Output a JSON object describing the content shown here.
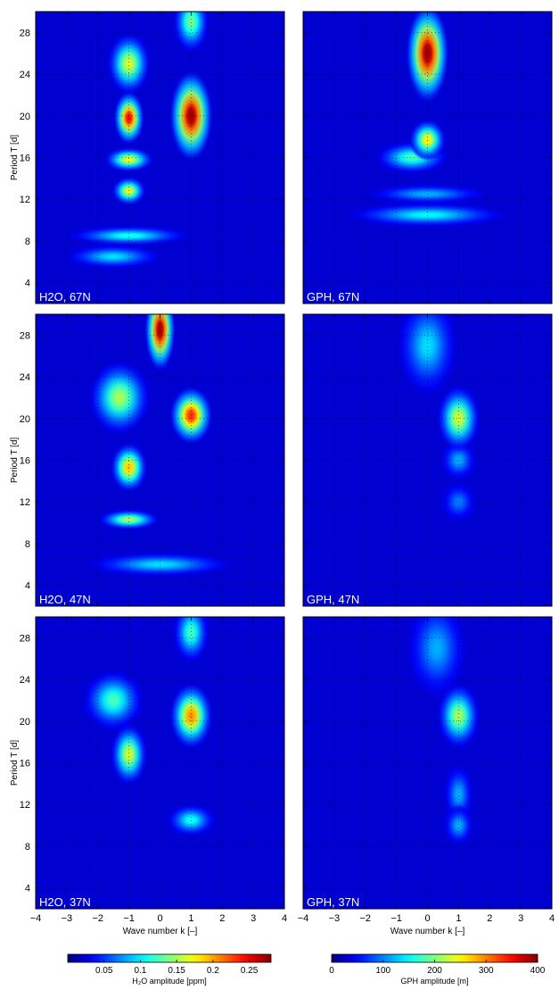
{
  "chart_data": {
    "type": "heatmap",
    "x_label": "Wave number k [–]",
    "y_label": "Period T [d]",
    "xlim": [
      -4,
      4
    ],
    "ylim": [
      2,
      30
    ],
    "x_ticks": [
      -4,
      -3,
      -2,
      -1,
      0,
      1,
      2,
      3,
      4
    ],
    "y_ticks": [
      4,
      8,
      12,
      16,
      20,
      24,
      28
    ],
    "grid": true,
    "colormap": "jet",
    "background_value_fraction": 0.08,
    "panels": [
      {
        "label": "H2O, 67N",
        "quantity": "H2O",
        "peaks": [
          {
            "k": 1,
            "T": 20,
            "value_fraction": 1.0,
            "sk": 0.35,
            "sT": 2.2
          },
          {
            "k": -1,
            "T": 19.8,
            "value_fraction": 0.9,
            "sk": 0.25,
            "sT": 1.3
          },
          {
            "k": -1,
            "T": 25,
            "value_fraction": 0.6,
            "sk": 0.35,
            "sT": 1.5
          },
          {
            "k": -1,
            "T": 15.8,
            "value_fraction": 0.62,
            "sk": 0.4,
            "sT": 0.6
          },
          {
            "k": -1,
            "T": 12.8,
            "value_fraction": 0.62,
            "sk": 0.28,
            "sT": 0.7
          },
          {
            "k": 1,
            "T": 29,
            "value_fraction": 0.5,
            "sk": 0.3,
            "sT": 1.5
          },
          {
            "k": -1,
            "T": 8.5,
            "value_fraction": 0.4,
            "sk": 1.0,
            "sT": 0.5
          },
          {
            "k": -1.5,
            "T": 6.5,
            "value_fraction": 0.35,
            "sk": 0.8,
            "sT": 0.6
          }
        ]
      },
      {
        "label": "GPH, 67N",
        "quantity": "GPH",
        "peaks": [
          {
            "k": 0,
            "T": 26,
            "value_fraction": 1.0,
            "sk": 0.35,
            "sT": 2.4
          },
          {
            "k": 0,
            "T": 17.7,
            "value_fraction": 0.65,
            "sk": 0.3,
            "sT": 1.0
          },
          {
            "k": -0.5,
            "T": 16,
            "value_fraction": 0.45,
            "sk": 0.6,
            "sT": 0.8
          },
          {
            "k": 0,
            "T": 10.5,
            "value_fraction": 0.38,
            "sk": 1.3,
            "sT": 0.6
          },
          {
            "k": 0,
            "T": 12.5,
            "value_fraction": 0.3,
            "sk": 1.0,
            "sT": 0.5
          }
        ]
      },
      {
        "label": "H2O, 47N",
        "quantity": "H2O",
        "peaks": [
          {
            "k": 0,
            "T": 28.5,
            "value_fraction": 1.0,
            "sk": 0.25,
            "sT": 2.0
          },
          {
            "k": 1,
            "T": 20.3,
            "value_fraction": 0.85,
            "sk": 0.35,
            "sT": 1.4
          },
          {
            "k": -1,
            "T": 15.3,
            "value_fraction": 0.7,
            "sk": 0.3,
            "sT": 1.2
          },
          {
            "k": -1.3,
            "T": 22,
            "value_fraction": 0.55,
            "sk": 0.5,
            "sT": 1.8
          },
          {
            "k": -1,
            "T": 10.3,
            "value_fraction": 0.55,
            "sk": 0.5,
            "sT": 0.5
          },
          {
            "k": 0,
            "T": 6,
            "value_fraction": 0.35,
            "sk": 1.2,
            "sT": 0.6
          }
        ]
      },
      {
        "label": "GPH, 47N",
        "quantity": "GPH",
        "peaks": [
          {
            "k": 1,
            "T": 20,
            "value_fraction": 0.6,
            "sk": 0.35,
            "sT": 1.6
          },
          {
            "k": 0,
            "T": 27,
            "value_fraction": 0.35,
            "sk": 0.5,
            "sT": 2.5
          },
          {
            "k": 1,
            "T": 16,
            "value_fraction": 0.3,
            "sk": 0.3,
            "sT": 1.0
          },
          {
            "k": 1,
            "T": 12,
            "value_fraction": 0.25,
            "sk": 0.3,
            "sT": 1.0
          }
        ]
      },
      {
        "label": "H2O, 37N",
        "quantity": "H2O",
        "peaks": [
          {
            "k": 1,
            "T": 20.5,
            "value_fraction": 0.75,
            "sk": 0.35,
            "sT": 1.6
          },
          {
            "k": -1,
            "T": 16.8,
            "value_fraction": 0.6,
            "sk": 0.3,
            "sT": 1.5
          },
          {
            "k": -1.5,
            "T": 22,
            "value_fraction": 0.45,
            "sk": 0.5,
            "sT": 1.5
          },
          {
            "k": 1,
            "T": 28.5,
            "value_fraction": 0.45,
            "sk": 0.3,
            "sT": 1.5
          },
          {
            "k": 1,
            "T": 10.5,
            "value_fraction": 0.4,
            "sk": 0.4,
            "sT": 0.8
          }
        ]
      },
      {
        "label": "GPH, 37N",
        "quantity": "GPH",
        "peaks": [
          {
            "k": 1,
            "T": 20.5,
            "value_fraction": 0.55,
            "sk": 0.35,
            "sT": 1.6
          },
          {
            "k": 0.3,
            "T": 27,
            "value_fraction": 0.3,
            "sk": 0.5,
            "sT": 2.5
          },
          {
            "k": 1,
            "T": 13,
            "value_fraction": 0.3,
            "sk": 0.25,
            "sT": 1.5
          },
          {
            "k": 1,
            "T": 10,
            "value_fraction": 0.3,
            "sk": 0.25,
            "sT": 1.0
          }
        ]
      }
    ],
    "colorbars": [
      {
        "quantity": "H2O",
        "label": "H₂O amplitude [ppm]",
        "range": [
          0,
          0.28
        ],
        "ticks": [
          0.05,
          0.1,
          0.15,
          0.2,
          0.25
        ],
        "tick_labels": [
          "0.05",
          "0.1",
          "0.15",
          "0.2",
          "0.25"
        ]
      },
      {
        "quantity": "GPH",
        "label": "GPH amplitude [m]",
        "range": [
          0,
          400
        ],
        "ticks": [
          0,
          100,
          200,
          300,
          400
        ],
        "tick_labels": [
          "0",
          "100",
          "200",
          "300",
          "400"
        ]
      }
    ]
  }
}
